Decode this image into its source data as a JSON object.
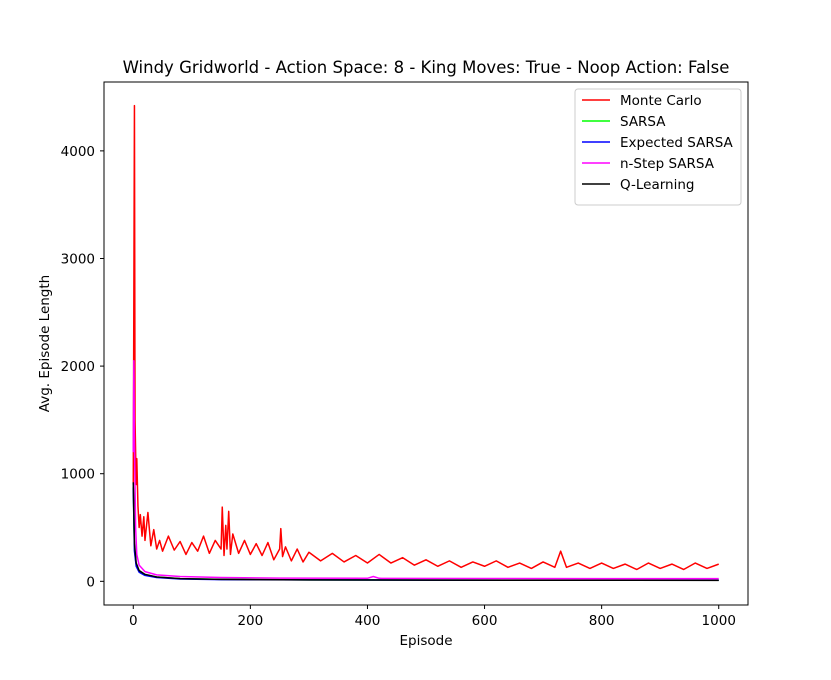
{
  "chart_data": {
    "type": "line",
    "title": "Windy Gridworld - Action Space: 8 - King Moves: True - Noop Action: False",
    "xlabel": "Episode",
    "ylabel": "Avg. Episode Length",
    "xlim": [
      -50,
      1050
    ],
    "ylim": [
      -220,
      4640
    ],
    "xticks": [
      0,
      200,
      400,
      600,
      800,
      1000
    ],
    "yticks": [
      0,
      1000,
      2000,
      3000,
      4000
    ],
    "grid": false,
    "legend_position": "top-right",
    "series": [
      {
        "name": "Monte Carlo",
        "color": "#ff0000",
        "points": [
          [
            0,
            900
          ],
          [
            2,
            4420
          ],
          [
            3,
            1500
          ],
          [
            5,
            900
          ],
          [
            6,
            1140
          ],
          [
            8,
            700
          ],
          [
            10,
            500
          ],
          [
            12,
            620
          ],
          [
            15,
            420
          ],
          [
            18,
            600
          ],
          [
            20,
            380
          ],
          [
            25,
            640
          ],
          [
            30,
            330
          ],
          [
            35,
            480
          ],
          [
            40,
            300
          ],
          [
            45,
            380
          ],
          [
            50,
            280
          ],
          [
            60,
            420
          ],
          [
            70,
            290
          ],
          [
            80,
            370
          ],
          [
            90,
            250
          ],
          [
            100,
            360
          ],
          [
            110,
            280
          ],
          [
            120,
            420
          ],
          [
            130,
            260
          ],
          [
            140,
            380
          ],
          [
            150,
            300
          ],
          [
            152,
            690
          ],
          [
            155,
            240
          ],
          [
            158,
            520
          ],
          [
            160,
            300
          ],
          [
            163,
            650
          ],
          [
            166,
            250
          ],
          [
            170,
            440
          ],
          [
            180,
            260
          ],
          [
            190,
            380
          ],
          [
            200,
            250
          ],
          [
            210,
            350
          ],
          [
            220,
            240
          ],
          [
            230,
            360
          ],
          [
            240,
            200
          ],
          [
            250,
            300
          ],
          [
            252,
            490
          ],
          [
            255,
            230
          ],
          [
            260,
            320
          ],
          [
            270,
            190
          ],
          [
            280,
            300
          ],
          [
            290,
            180
          ],
          [
            300,
            270
          ],
          [
            320,
            190
          ],
          [
            340,
            260
          ],
          [
            360,
            180
          ],
          [
            380,
            240
          ],
          [
            400,
            170
          ],
          [
            420,
            250
          ],
          [
            440,
            170
          ],
          [
            460,
            220
          ],
          [
            480,
            150
          ],
          [
            500,
            200
          ],
          [
            520,
            140
          ],
          [
            540,
            190
          ],
          [
            560,
            130
          ],
          [
            580,
            180
          ],
          [
            600,
            140
          ],
          [
            620,
            190
          ],
          [
            640,
            130
          ],
          [
            660,
            170
          ],
          [
            680,
            120
          ],
          [
            700,
            180
          ],
          [
            720,
            130
          ],
          [
            730,
            280
          ],
          [
            740,
            130
          ],
          [
            760,
            170
          ],
          [
            780,
            120
          ],
          [
            800,
            170
          ],
          [
            820,
            120
          ],
          [
            840,
            160
          ],
          [
            860,
            110
          ],
          [
            880,
            170
          ],
          [
            900,
            120
          ],
          [
            920,
            160
          ],
          [
            940,
            110
          ],
          [
            960,
            170
          ],
          [
            980,
            120
          ],
          [
            1000,
            160
          ]
        ]
      },
      {
        "name": "SARSA",
        "color": "#00ff00",
        "points": [
          [
            0,
            880
          ],
          [
            2,
            300
          ],
          [
            5,
            150
          ],
          [
            10,
            90
          ],
          [
            20,
            60
          ],
          [
            40,
            40
          ],
          [
            80,
            25
          ],
          [
            150,
            18
          ],
          [
            300,
            14
          ],
          [
            500,
            12
          ],
          [
            700,
            11
          ],
          [
            1000,
            10
          ]
        ]
      },
      {
        "name": "Expected SARSA",
        "color": "#0000ff",
        "points": [
          [
            0,
            870
          ],
          [
            2,
            280
          ],
          [
            5,
            140
          ],
          [
            10,
            85
          ],
          [
            20,
            55
          ],
          [
            40,
            35
          ],
          [
            80,
            22
          ],
          [
            150,
            16
          ],
          [
            300,
            13
          ],
          [
            500,
            11
          ],
          [
            700,
            10
          ],
          [
            1000,
            10
          ]
        ]
      },
      {
        "name": "n-Step SARSA",
        "color": "#ff00ff",
        "points": [
          [
            0,
            1200
          ],
          [
            1,
            2050
          ],
          [
            2,
            1300
          ],
          [
            4,
            500
          ],
          [
            6,
            250
          ],
          [
            10,
            150
          ],
          [
            20,
            90
          ],
          [
            40,
            60
          ],
          [
            80,
            45
          ],
          [
            150,
            35
          ],
          [
            250,
            30
          ],
          [
            400,
            28
          ],
          [
            410,
            45
          ],
          [
            420,
            28
          ],
          [
            600,
            26
          ],
          [
            800,
            25
          ],
          [
            1000,
            25
          ]
        ]
      },
      {
        "name": "Q-Learning",
        "color": "#000000",
        "points": [
          [
            0,
            920
          ],
          [
            2,
            350
          ],
          [
            5,
            170
          ],
          [
            10,
            100
          ],
          [
            20,
            65
          ],
          [
            40,
            40
          ],
          [
            80,
            25
          ],
          [
            150,
            18
          ],
          [
            300,
            13
          ],
          [
            500,
            11
          ],
          [
            700,
            10
          ],
          [
            1000,
            9
          ]
        ]
      }
    ]
  }
}
